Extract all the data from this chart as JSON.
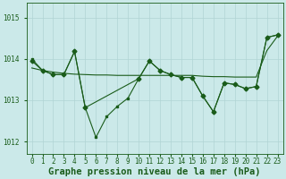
{
  "background_color": "#cbe9e9",
  "grid_color": "#b0d4d4",
  "line_color": "#1a5c1a",
  "xlabel": "Graphe pression niveau de la mer (hPa)",
  "xlabel_fontsize": 7.5,
  "ylim": [
    1011.7,
    1015.35
  ],
  "yticks": [
    1012,
    1013,
    1014,
    1015
  ],
  "xlim": [
    -0.5,
    23.5
  ],
  "xticks": [
    0,
    1,
    2,
    3,
    4,
    5,
    6,
    7,
    8,
    9,
    10,
    11,
    12,
    13,
    14,
    15,
    16,
    17,
    18,
    19,
    20,
    21,
    22,
    23
  ],
  "tick_fontsize": 5.5,
  "series_main_x": [
    0,
    1,
    2,
    3,
    4,
    5,
    6,
    7,
    8,
    9,
    10,
    11,
    12,
    13,
    14,
    15,
    16,
    17,
    18,
    19,
    20,
    21,
    22,
    23
  ],
  "series_main_y": [
    1014.0,
    1013.72,
    1013.62,
    1013.62,
    1014.18,
    1012.82,
    1012.1,
    1012.6,
    1012.85,
    1013.05,
    1013.52,
    1013.95,
    1013.72,
    1013.62,
    1013.55,
    1013.55,
    1013.1,
    1012.72,
    1013.42,
    1013.38,
    1013.28,
    1013.33,
    1014.52,
    1014.58
  ],
  "series_trend_x": [
    0,
    1,
    2,
    3,
    4,
    5,
    6,
    7,
    8,
    9,
    10,
    11,
    12,
    13,
    14,
    15,
    16,
    17,
    18,
    19,
    20,
    21,
    22,
    23
  ],
  "series_trend_y": [
    1013.78,
    1013.72,
    1013.68,
    1013.65,
    1013.63,
    1013.62,
    1013.61,
    1013.61,
    1013.6,
    1013.6,
    1013.6,
    1013.6,
    1013.6,
    1013.6,
    1013.6,
    1013.6,
    1013.58,
    1013.57,
    1013.57,
    1013.56,
    1013.56,
    1013.56,
    1014.2,
    1014.55
  ],
  "series_sparse_x": [
    0,
    1,
    2,
    3,
    4,
    5,
    10,
    11,
    12,
    13,
    14,
    15,
    16,
    17,
    18,
    19,
    20,
    21,
    22,
    23
  ],
  "series_sparse_y": [
    1013.95,
    1013.72,
    1013.62,
    1013.62,
    1014.18,
    1012.82,
    1013.52,
    1013.95,
    1013.72,
    1013.62,
    1013.55,
    1013.55,
    1013.1,
    1012.72,
    1013.42,
    1013.38,
    1013.28,
    1013.33,
    1014.52,
    1014.58
  ]
}
